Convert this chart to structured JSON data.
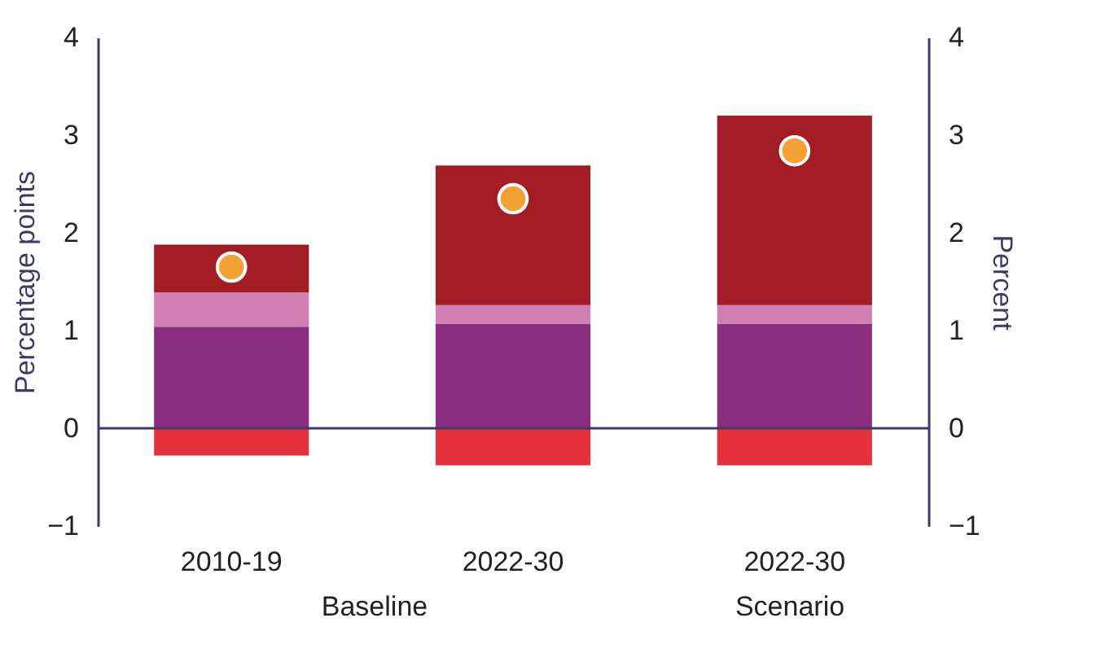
{
  "chart_data": {
    "type": "bar",
    "stacked": true,
    "categories": [
      "2010-19",
      "2022-30",
      "2022-30"
    ],
    "series": [
      {
        "color": "#8b2e7f",
        "values": [
          1.04,
          1.07,
          1.07
        ]
      },
      {
        "color": "#d27fb6",
        "values": [
          0.35,
          0.19,
          0.19
        ]
      },
      {
        "color": "#a31d25",
        "values": [
          0.49,
          1.43,
          1.94
        ]
      },
      {
        "color": "#e5313b",
        "values": [
          -0.28,
          -0.38,
          -0.38
        ]
      },
      {
        "type": "scatter",
        "color": "#f4a236",
        "values": [
          1.65,
          2.35,
          2.84
        ]
      }
    ],
    "ylabel": "Percentage points",
    "y2label": "Percent",
    "ylim": [
      -1,
      4
    ],
    "yticks": [
      -1,
      0,
      1,
      2,
      3,
      4
    ],
    "y2lim": [
      -1,
      4
    ],
    "y2ticks": [
      -1,
      0,
      1,
      2,
      3,
      4
    ],
    "ref_lines": [
      {
        "axis": "y",
        "value": 0,
        "color": "#3b3a6b"
      }
    ],
    "annotations": [
      "Baseline",
      "Scenario"
    ],
    "grid": false,
    "marker": "circle"
  }
}
